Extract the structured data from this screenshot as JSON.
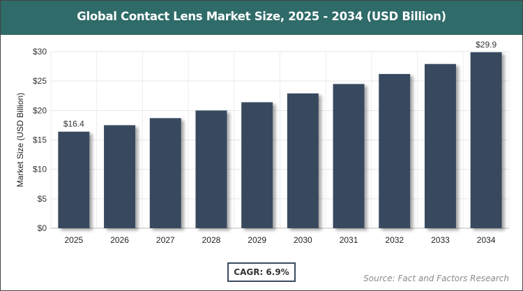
{
  "title": "Global Contact Lens Market Size, 2025 - 2034 (USD Billion)",
  "cagr_label": "CAGR: 6.9%",
  "source": "Source: Fact and Factors Research",
  "colors": {
    "title_bar": "#2f6b68",
    "bar": "#374a5f"
  },
  "chart_data": {
    "type": "bar",
    "title": "Global Contact Lens Market Size, 2025 - 2034 (USD Billion)",
    "xlabel": "",
    "ylabel": "Market Size (USD Billion)",
    "categories": [
      "2025",
      "2026",
      "2027",
      "2028",
      "2029",
      "2030",
      "2031",
      "2032",
      "2033",
      "2034"
    ],
    "values": [
      16.4,
      17.5,
      18.7,
      20.0,
      21.4,
      22.9,
      24.5,
      26.2,
      27.9,
      29.9
    ],
    "ylim": [
      0,
      30
    ],
    "yticks": [
      "$0",
      "$5",
      "$10",
      "$15",
      "$20",
      "$25",
      "$30"
    ],
    "data_labels": {
      "0": "$16.4",
      "9": "$29.9"
    },
    "grid": true
  }
}
